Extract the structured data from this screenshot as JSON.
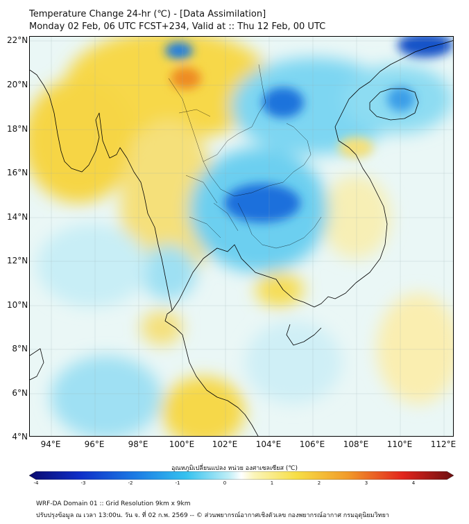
{
  "header": {
    "title_line1": "Temperature Change 24-hr (℃) - [Data Assimilation]",
    "title_line2": "Monday 02 Feb, 06 UTC FCST+234, Valid at :: Thu 12 Feb, 00 UTC"
  },
  "map": {
    "lat_labels": [
      "22°N",
      "20°N",
      "18°N",
      "16°N",
      "14°N",
      "12°N",
      "10°N",
      "8°N",
      "6°N",
      "4°N"
    ],
    "lon_labels": [
      "94°E",
      "96°E",
      "98°E",
      "100°E",
      "102°E",
      "104°E",
      "106°E",
      "108°E",
      "110°E",
      "112°E"
    ],
    "extent": {
      "lon_min": 93.0,
      "lon_max": 112.5,
      "lat_min": 4.0,
      "lat_max": 22.2
    }
  },
  "colorbar": {
    "title": "อุณหภูมิเปลี่ยนแปลง หน่วย องศาเซลเซียส (℃)",
    "ticks": [
      "-4",
      "-3",
      "-2",
      "-1",
      "0",
      "1",
      "2",
      "3",
      "4"
    ],
    "min": -4,
    "max": 4
  },
  "footer": {
    "line1": "WRF-DA Domain 01 :: Grid Resolution 9km x 9km",
    "line2": "ปรับปรุงข้อมูล ณ เวลา 13:00น. วัน จ. ที่ 02 ก.พ. 2569 -- © ส่วนพยากรณ์อากาศเชิงตัวเลข กองพยากรณ์อากาศ กรมอุตุนิยมวิทยา"
  },
  "colors": {
    "warm_light": "#fbf3a8",
    "warm_mid": "#f7d33a",
    "warm_strong": "#ee8b22",
    "cool_light": "#bde8f5",
    "cool_mid": "#3fc4ee",
    "cool_strong": "#1560d8"
  }
}
